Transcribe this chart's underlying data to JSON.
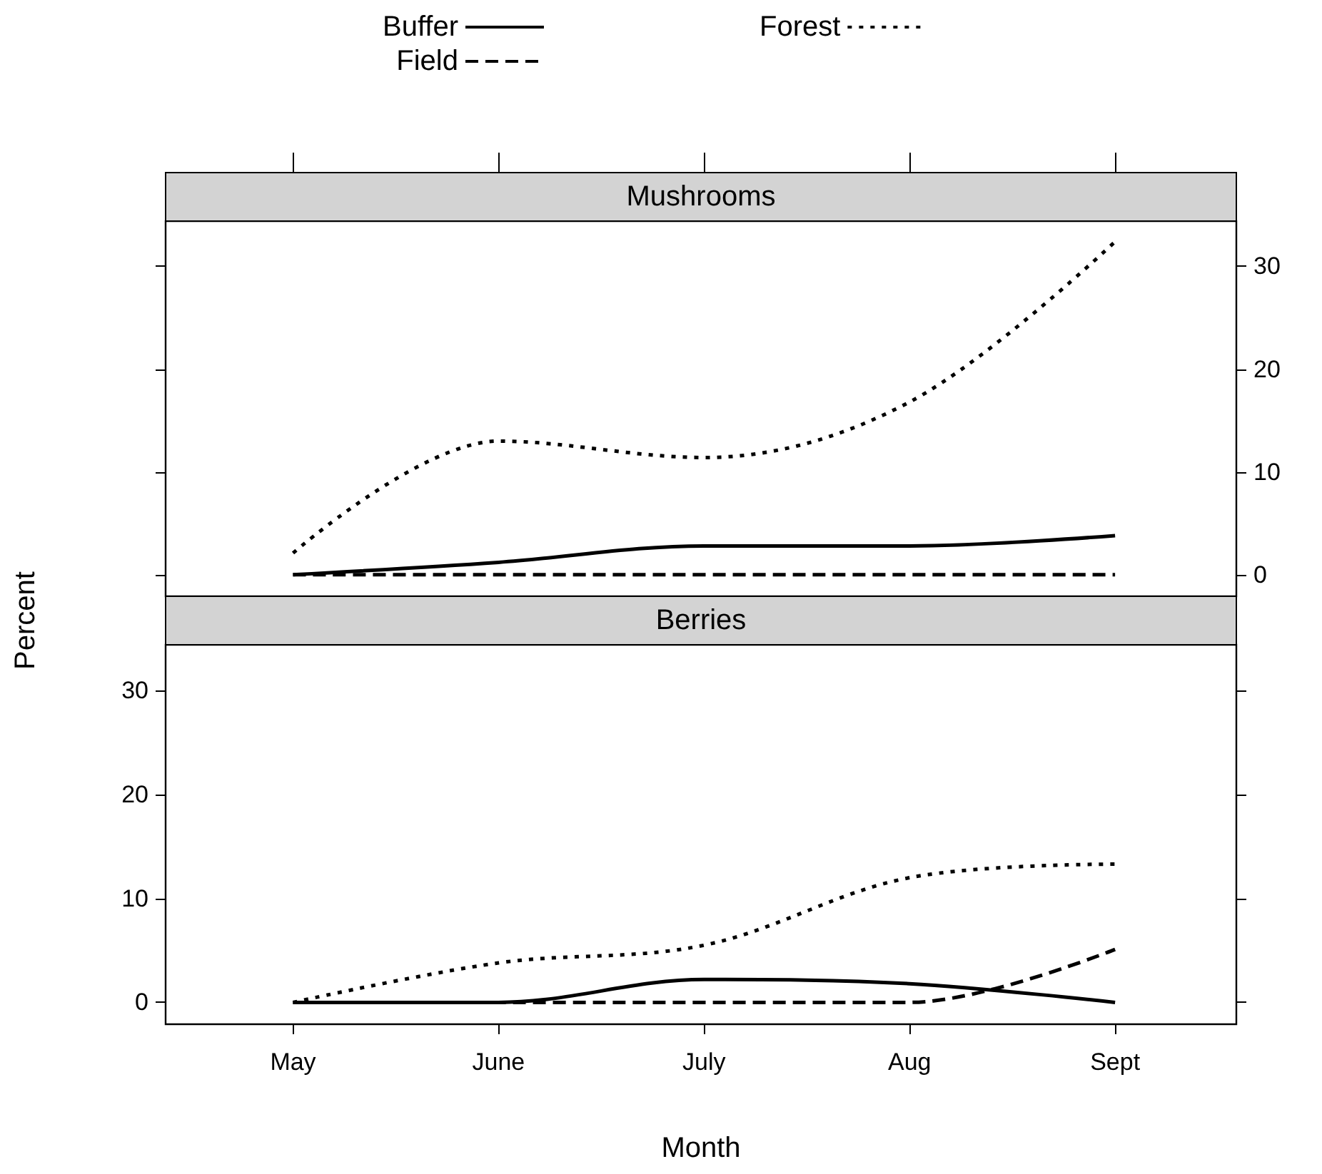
{
  "chart_data": [
    {
      "type": "line",
      "title": "Mushrooms",
      "ylim": [
        -2.1,
        34.4
      ],
      "yticks": [
        0,
        10,
        20,
        30
      ],
      "tick_labels": "y",
      "grid": false,
      "legend": "top",
      "marker": "none",
      "series": [
        {
          "name": "Buffer",
          "color": "#000000",
          "line_style": "solid",
          "values": [
            0,
            1.2,
            2.8,
            2.8,
            3.8
          ]
        },
        {
          "name": "Field",
          "color": "#000000",
          "line_style": "dashed",
          "values": [
            0,
            0,
            0,
            0,
            0
          ]
        },
        {
          "name": "Forest",
          "color": "#000000",
          "line_style": "dotted",
          "values": [
            2.1,
            13,
            11.4,
            16.8,
            32.4
          ]
        }
      ]
    },
    {
      "type": "line",
      "title": "Berries",
      "ylabel": "Percent",
      "xlabel": "Month",
      "categories": [
        "May",
        "June",
        "July",
        "Aug",
        "Sept"
      ],
      "ylim": [
        -2.1,
        34.4
      ],
      "yticks": [
        0,
        10,
        20,
        30
      ],
      "grid": false,
      "marker": "none",
      "series": [
        {
          "color": "#000000",
          "line_style": "solid",
          "values": [
            0,
            0,
            2.2,
            1.8,
            0
          ]
        },
        {
          "color": "#000000",
          "line_style": "dashed",
          "values": [
            0,
            0,
            0,
            0,
            5.1
          ]
        },
        {
          "color": "#000000",
          "line_style": "dotted",
          "values": [
            0,
            3.8,
            5.5,
            12,
            13.3
          ]
        }
      ]
    }
  ]
}
